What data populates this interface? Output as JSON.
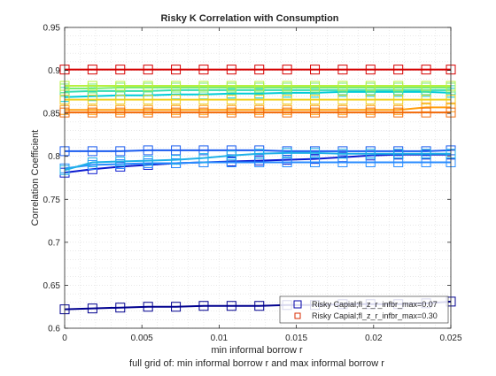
{
  "chart_data": {
    "type": "line",
    "title": "Risky K Correlation with Consumption",
    "xlabel": "min informal borrow r",
    "xlabel2": "full grid of: min informal borrow r and max informal borrow r",
    "ylabel": "Correlation Coefficient",
    "xlim": [
      0,
      0.025
    ],
    "ylim": [
      0.6,
      0.95
    ],
    "grid": "minor-dotted",
    "xticks": [
      0,
      0.005,
      0.01,
      0.015,
      0.02,
      0.025
    ],
    "xtick_labels": [
      "0",
      "0.005",
      "0.01",
      "0.015",
      "0.02",
      "0.025"
    ],
    "yticks": [
      0.6,
      0.65,
      0.7,
      0.75,
      0.8,
      0.85,
      0.9,
      0.95
    ],
    "ytick_labels": [
      "0.6",
      "0.65",
      "0.7",
      "0.75",
      "0.8",
      "0.85",
      "0.9",
      "0.95"
    ],
    "x": [
      0,
      0.0018,
      0.0036,
      0.0054,
      0.0072,
      0.009,
      0.0108,
      0.0126,
      0.0144,
      0.0162,
      0.018,
      0.0198,
      0.0216,
      0.0234,
      0.025
    ],
    "legend": {
      "position": "bottom-right",
      "entries": [
        {
          "label": "Risky Capial;fl_z_r_infbr_max=0.07",
          "color": "#0000a8",
          "marker": "square"
        },
        {
          "label": "Risky Capial;fl_z_r_infbr_max=0.30",
          "color": "#d92b00",
          "marker": "square"
        }
      ]
    },
    "series": [
      {
        "color": "#00008f",
        "values": [
          0.622,
          0.623,
          0.624,
          0.625,
          0.625,
          0.626,
          0.626,
          0.626,
          0.627,
          0.627,
          0.628,
          0.628,
          0.628,
          0.629,
          0.631
        ]
      },
      {
        "color": "#0a1ad0",
        "values": [
          0.781,
          0.785,
          0.788,
          0.79,
          0.792,
          0.793,
          0.794,
          0.795,
          0.796,
          0.797,
          0.799,
          0.801,
          0.802,
          0.802,
          0.802
        ]
      },
      {
        "color": "#1a5cf0",
        "values": [
          0.806,
          0.806,
          0.806,
          0.807,
          0.807,
          0.807,
          0.807,
          0.807,
          0.806,
          0.806,
          0.806,
          0.806,
          0.806,
          0.806,
          0.807
        ]
      },
      {
        "color": "#2a8cff",
        "values": [
          0.786,
          0.79,
          0.791,
          0.792,
          0.792,
          0.793,
          0.793,
          0.793,
          0.793,
          0.793,
          0.793,
          0.793,
          0.793,
          0.793,
          0.793
        ]
      },
      {
        "color": "#1fb0e8",
        "values": [
          0.784,
          0.793,
          0.794,
          0.795,
          0.796,
          0.798,
          0.801,
          0.803,
          0.804,
          0.804,
          0.803,
          0.803,
          0.803,
          0.803,
          0.803
        ]
      },
      {
        "color": "#00ccd8",
        "values": [
          0.869,
          0.87,
          0.871,
          0.871,
          0.872,
          0.872,
          0.873,
          0.873,
          0.874,
          0.874,
          0.875,
          0.875,
          0.875,
          0.875,
          0.874
        ]
      },
      {
        "color": "#33dcb0",
        "values": [
          0.875,
          0.876,
          0.876,
          0.876,
          0.877,
          0.877,
          0.877,
          0.877,
          0.877,
          0.877,
          0.877,
          0.877,
          0.877,
          0.877,
          0.877
        ]
      },
      {
        "color": "#7aee70",
        "values": [
          0.879,
          0.879,
          0.88,
          0.88,
          0.88,
          0.88,
          0.88,
          0.88,
          0.88,
          0.88,
          0.88,
          0.88,
          0.88,
          0.88,
          0.88
        ]
      },
      {
        "color": "#b8f040",
        "values": [
          0.882,
          0.882,
          0.882,
          0.882,
          0.882,
          0.882,
          0.882,
          0.882,
          0.882,
          0.882,
          0.882,
          0.882,
          0.882,
          0.882,
          0.882
        ]
      },
      {
        "color": "#f0d020",
        "values": [
          0.866,
          0.866,
          0.866,
          0.866,
          0.866,
          0.866,
          0.866,
          0.866,
          0.866,
          0.866,
          0.866,
          0.866,
          0.866,
          0.866,
          0.866
        ]
      },
      {
        "color": "#ff9e10",
        "values": [
          0.854,
          0.854,
          0.854,
          0.854,
          0.854,
          0.854,
          0.854,
          0.854,
          0.854,
          0.854,
          0.854,
          0.854,
          0.854,
          0.857,
          0.857
        ]
      },
      {
        "color": "#f26a08",
        "values": [
          0.851,
          0.851,
          0.851,
          0.851,
          0.851,
          0.851,
          0.851,
          0.851,
          0.851,
          0.851,
          0.851,
          0.851,
          0.851,
          0.851,
          0.851
        ]
      },
      {
        "color": "#d50000",
        "values": [
          0.901,
          0.901,
          0.901,
          0.901,
          0.901,
          0.901,
          0.901,
          0.901,
          0.901,
          0.901,
          0.901,
          0.901,
          0.901,
          0.901,
          0.901
        ]
      }
    ]
  }
}
